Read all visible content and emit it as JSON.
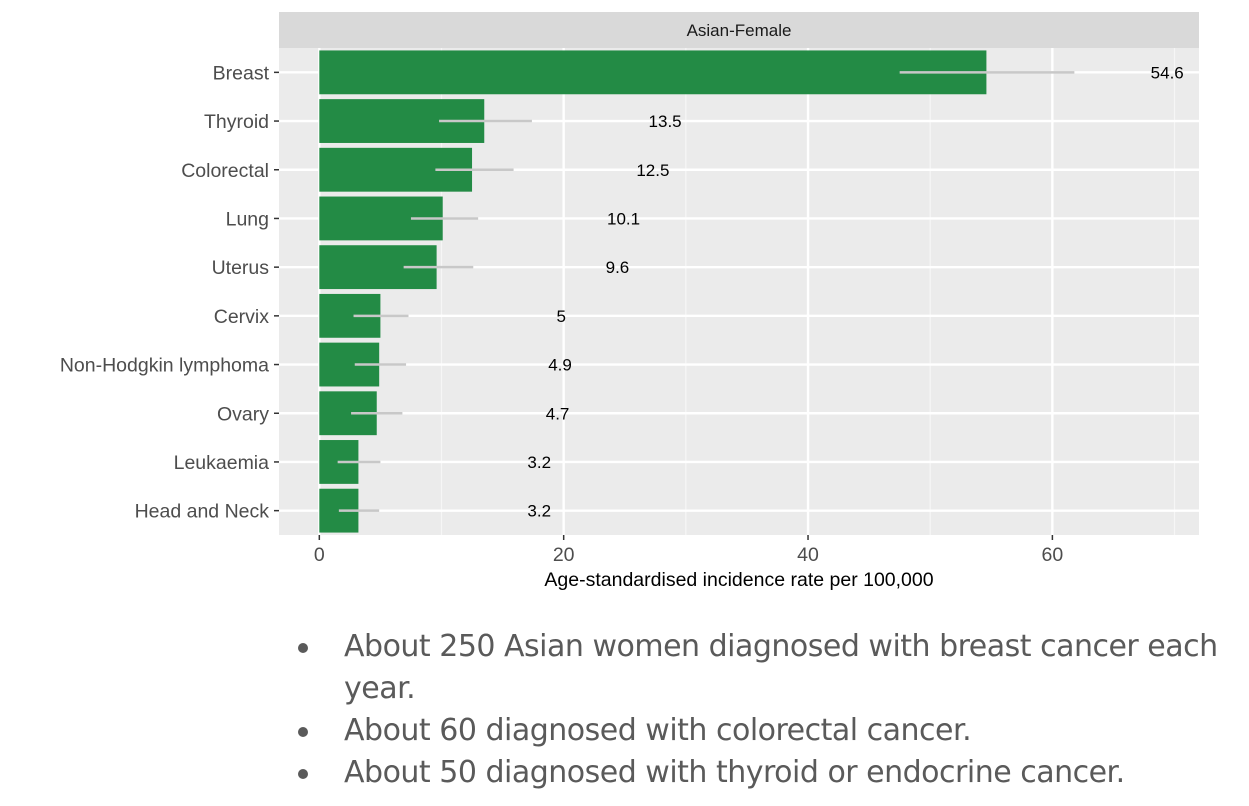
{
  "chart_data": {
    "type": "bar",
    "orientation": "horizontal",
    "facet_title": "Asian-Female",
    "categories": [
      "Breast",
      "Thyroid",
      "Colorectal",
      "Lung",
      "Uterus",
      "Cervix",
      "Non-Hodgkin lymphoma",
      "Ovary",
      "Leukaemia",
      "Head and Neck"
    ],
    "values": [
      54.6,
      13.5,
      12.5,
      10.1,
      9.6,
      5,
      4.9,
      4.7,
      3.2,
      3.2
    ],
    "value_labels": [
      "54.6",
      "13.5",
      "12.5",
      "10.1",
      "9.6",
      "5",
      "4.9",
      "4.7",
      "3.2",
      "3.2"
    ],
    "ci_lower": [
      47.5,
      9.8,
      9.5,
      7.5,
      6.9,
      2.8,
      2.9,
      2.6,
      1.5,
      1.6
    ],
    "ci_upper": [
      61.8,
      17.4,
      15.9,
      13.0,
      12.6,
      7.3,
      7.1,
      6.8,
      5.0,
      4.9
    ],
    "xlabel": "Age-standardised incidence rate per 100,000",
    "ylabel": "",
    "xlim": [
      -3.3,
      72
    ],
    "xticks": [
      0,
      20,
      40,
      60
    ],
    "xtick_labels": [
      "0",
      "20",
      "40",
      "60"
    ],
    "grid": true,
    "bar_color": "#238b45",
    "ci_color": "#c8c8c8",
    "panel_color": "#ebebeb",
    "strip_color": "#d9d9d9"
  },
  "bullets": [
    "About 250 Asian women diagnosed with breast cancer each year.",
    "About 60 diagnosed with colorectal cancer.",
    "About 50 diagnosed with thyroid or endocrine cancer."
  ]
}
